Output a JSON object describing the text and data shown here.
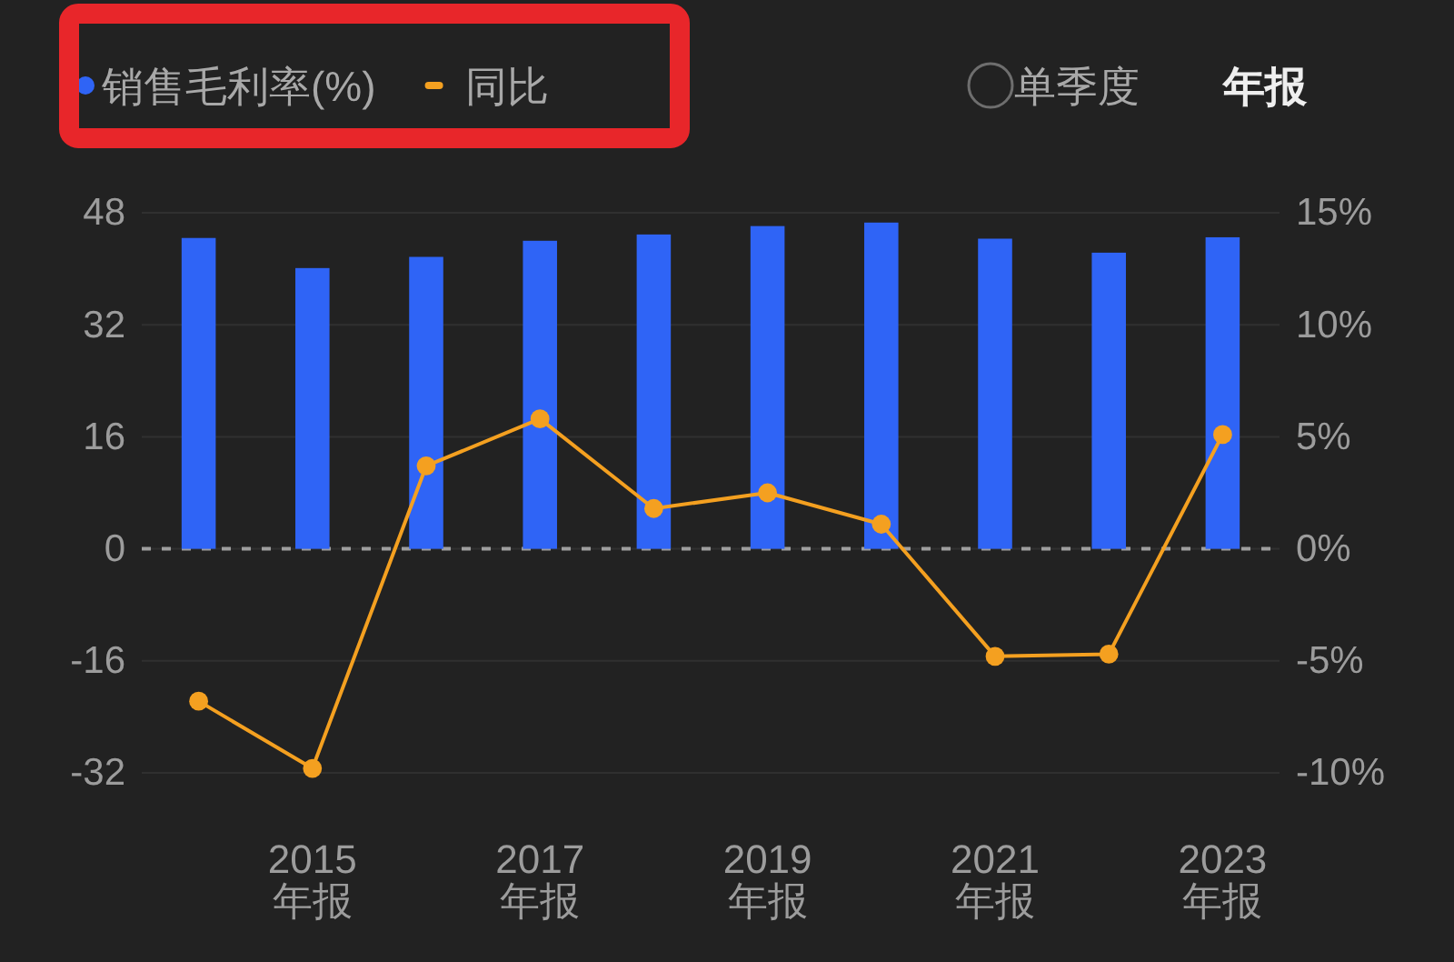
{
  "chart_data": {
    "type": "bar",
    "categories": [
      null,
      "2015\n年报",
      null,
      "2017\n年报",
      null,
      "2019\n年报",
      null,
      "2021\n年报",
      null,
      "2023\n年报"
    ],
    "series": [
      {
        "name": "销售毛利率(%)",
        "color": "#2f64f6",
        "values": [
          44.4,
          40.1,
          41.7,
          44.0,
          44.9,
          46.1,
          46.6,
          44.3,
          42.3,
          44.5
        ]
      },
      {
        "name": "同比",
        "type": "line",
        "axis": "y2",
        "color": "#f4a020",
        "values": [
          -6.8,
          -9.8,
          3.7,
          5.8,
          1.8,
          2.5,
          1.1,
          -4.8,
          -4.7,
          5.1
        ]
      }
    ],
    "ylim": [
      -32,
      48
    ],
    "yticks": [
      -32,
      -16,
      0,
      16,
      32,
      48
    ],
    "y2lim": [
      -10,
      15
    ],
    "y2ticks": [
      {
        "value": -10,
        "label": "-10%"
      },
      {
        "value": -5,
        "label": "-5%"
      },
      {
        "value": 0,
        "label": "0%"
      },
      {
        "value": 5,
        "label": "5%"
      },
      {
        "value": 10,
        "label": "10%"
      },
      {
        "value": 15,
        "label": "15%"
      }
    ],
    "ref_lines": [
      {
        "axis": "y",
        "value": 0,
        "color": "#9e9e9e",
        "line_style": "dashed"
      }
    ],
    "grid": "y",
    "legend": "top left",
    "marker": "circle",
    "annotations": [
      "单季度",
      "年报"
    ]
  }
}
